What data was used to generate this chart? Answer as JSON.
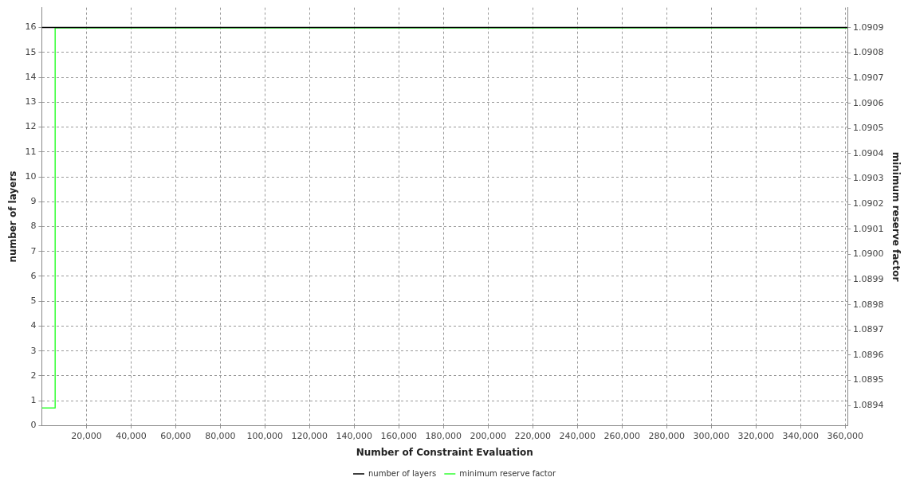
{
  "chart_data": {
    "type": "step",
    "xlabel": "Number of Constraint Evaluation",
    "ylabel": "number of layers",
    "y2label": "minimum reserve factor",
    "x": [
      0,
      361000
    ],
    "series": [
      {
        "name": "number of layers",
        "color": "#000000",
        "values": [
          16,
          16
        ]
      },
      {
        "name": "minimum reserve factor",
        "color": "#33ff33",
        "axis": "y2",
        "x": [
          0,
          6000,
          361000
        ],
        "values": [
          1.08939,
          1.0909,
          1.0909
        ]
      }
    ],
    "xlim": [
      0,
      361000
    ],
    "xticks": [
      {
        "value": 20000,
        "label": "20,000"
      },
      {
        "value": 40000,
        "label": "40,000"
      },
      {
        "value": 60000,
        "label": "60,000"
      },
      {
        "value": 80000,
        "label": "80,000"
      },
      {
        "value": 100000,
        "label": "100,000"
      },
      {
        "value": 120000,
        "label": "120,000"
      },
      {
        "value": 140000,
        "label": "140,000"
      },
      {
        "value": 160000,
        "label": "160,000"
      },
      {
        "value": 180000,
        "label": "180,000"
      },
      {
        "value": 200000,
        "label": "200,000"
      },
      {
        "value": 220000,
        "label": "220,000"
      },
      {
        "value": 240000,
        "label": "240,000"
      },
      {
        "value": 260000,
        "label": "260,000"
      },
      {
        "value": 280000,
        "label": "280,000"
      },
      {
        "value": 300000,
        "label": "300,000"
      },
      {
        "value": 320000,
        "label": "320,000"
      },
      {
        "value": 340000,
        "label": "340,000"
      },
      {
        "value": 360000,
        "label": "360,000"
      }
    ],
    "ylim": [
      0,
      16.8
    ],
    "yticks": [
      0,
      1,
      2,
      3,
      4,
      5,
      6,
      7,
      8,
      9,
      10,
      11,
      12,
      13,
      14,
      15,
      16
    ],
    "y2lim": [
      1.08932,
      1.09098
    ],
    "y2ticks": [
      {
        "value": 1.0894,
        "label": "1.0894"
      },
      {
        "value": 1.0895,
        "label": "1.0895"
      },
      {
        "value": 1.0896,
        "label": "1.0896"
      },
      {
        "value": 1.0897,
        "label": "1.0897"
      },
      {
        "value": 1.0898,
        "label": "1.0898"
      },
      {
        "value": 1.0899,
        "label": "1.0899"
      },
      {
        "value": 1.09,
        "label": "1.0900"
      },
      {
        "value": 1.0901,
        "label": "1.0901"
      },
      {
        "value": 1.0902,
        "label": "1.0902"
      },
      {
        "value": 1.0903,
        "label": "1.0903"
      },
      {
        "value": 1.0904,
        "label": "1.0904"
      },
      {
        "value": 1.0905,
        "label": "1.0905"
      },
      {
        "value": 1.0906,
        "label": "1.0906"
      },
      {
        "value": 1.0907,
        "label": "1.0907"
      },
      {
        "value": 1.0908,
        "label": "1.0908"
      },
      {
        "value": 1.0909,
        "label": "1.0909"
      }
    ],
    "grid": true,
    "legend": "bottom",
    "marker": "none",
    "line_style": "solid"
  }
}
